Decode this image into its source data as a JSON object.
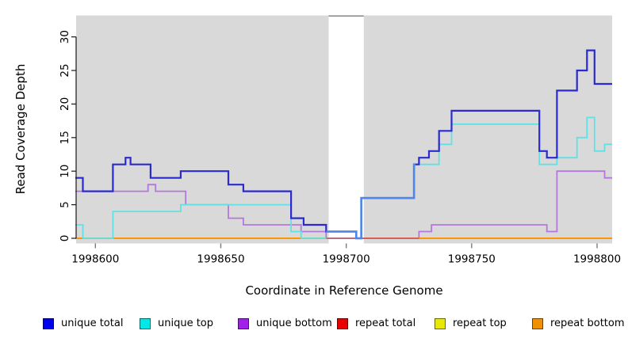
{
  "chart_data": {
    "type": "line",
    "subtype": "step",
    "title": "",
    "xlabel": "Coordinate in Reference Genome",
    "ylabel": "Read Coverage Depth",
    "x_ticks": [
      1998600,
      1998650,
      1998700,
      1998750,
      1998800
    ],
    "y_ticks": [
      0,
      5,
      10,
      15,
      20,
      25,
      30
    ],
    "xlim": [
      1998592,
      1998806
    ],
    "ylim": [
      0,
      33
    ],
    "grid": false,
    "plot_bg": "#d9d9d9",
    "legend_position": "bottom",
    "masked_region": {
      "from": 1998693,
      "to": 1998707,
      "color": "#ffffff",
      "top_border": "#8e8e8e"
    },
    "draw_order": [
      "repeat top",
      "unique bottom",
      "repeat bottom",
      "unique top",
      "repeat total",
      "unique total"
    ],
    "series": [
      {
        "name": "unique total",
        "color": "#0000ee",
        "line_color": "#2a2ad0",
        "line_width": 2.2,
        "light_overlay": {
          "from": 1998692,
          "to": 1998727.6,
          "color": "#4f86e9"
        },
        "steps": [
          [
            1998592,
            9
          ],
          [
            1998595,
            7
          ],
          [
            1998607,
            11
          ],
          [
            1998612,
            12
          ],
          [
            1998614,
            11
          ],
          [
            1998622,
            9
          ],
          [
            1998634,
            10
          ],
          [
            1998653,
            8
          ],
          [
            1998659,
            7
          ],
          [
            1998678,
            3
          ],
          [
            1998683,
            2
          ],
          [
            1998692,
            1
          ],
          [
            1998704,
            0
          ],
          [
            1998706,
            6
          ],
          [
            1998727,
            11
          ],
          [
            1998729,
            12
          ],
          [
            1998733,
            13
          ],
          [
            1998737,
            16
          ],
          [
            1998742,
            19
          ],
          [
            1998777,
            13
          ],
          [
            1998780,
            12
          ],
          [
            1998784,
            22
          ],
          [
            1998792,
            25
          ],
          [
            1998796,
            28
          ],
          [
            1998799,
            23
          ],
          [
            1998806,
            23
          ]
        ]
      },
      {
        "name": "unique top",
        "color": "#00e8e8",
        "line_color": "#5fe2e6",
        "line_width": 1.8,
        "steps": [
          [
            1998592,
            2
          ],
          [
            1998595,
            0
          ],
          [
            1998607,
            4
          ],
          [
            1998634,
            5
          ],
          [
            1998678,
            1
          ],
          [
            1998682,
            0
          ],
          [
            1998706,
            6
          ],
          [
            1998727,
            11
          ],
          [
            1998737,
            14
          ],
          [
            1998742,
            17
          ],
          [
            1998777,
            11
          ],
          [
            1998784,
            12
          ],
          [
            1998792,
            15
          ],
          [
            1998796,
            18
          ],
          [
            1998799,
            13
          ],
          [
            1998803,
            14
          ],
          [
            1998806,
            14
          ]
        ]
      },
      {
        "name": "unique bottom",
        "color": "#a11fe8",
        "line_color": "#b478dc",
        "line_width": 1.8,
        "steps": [
          [
            1998592,
            7
          ],
          [
            1998621,
            8
          ],
          [
            1998624,
            7
          ],
          [
            1998636,
            5
          ],
          [
            1998653,
            3
          ],
          [
            1998659,
            2
          ],
          [
            1998682,
            1
          ],
          [
            1998692,
            0
          ],
          [
            1998729,
            1
          ],
          [
            1998734,
            2
          ],
          [
            1998780,
            1
          ],
          [
            1998784,
            10
          ],
          [
            1998803,
            9
          ],
          [
            1998806,
            9
          ]
        ]
      },
      {
        "name": "repeat total",
        "color": "#e80000",
        "line_color": "#cc4d72",
        "line_width": 1.5,
        "steps": [
          [
            1998692,
            0
          ],
          [
            1998729,
            0
          ]
        ]
      },
      {
        "name": "repeat top",
        "color": "#e8e800",
        "line_color": "#e8e800",
        "line_width": 1.5,
        "steps": [
          [
            1998592,
            0
          ],
          [
            1998806,
            0
          ]
        ]
      },
      {
        "name": "repeat bottom",
        "color": "#ef9100",
        "line_color": "#ff9500",
        "line_width": 2,
        "steps": [
          [
            1998592,
            0
          ],
          [
            1998806,
            0
          ]
        ]
      }
    ]
  },
  "legend_lefts": [
    54,
    176,
    300,
    425,
    548,
    671
  ]
}
